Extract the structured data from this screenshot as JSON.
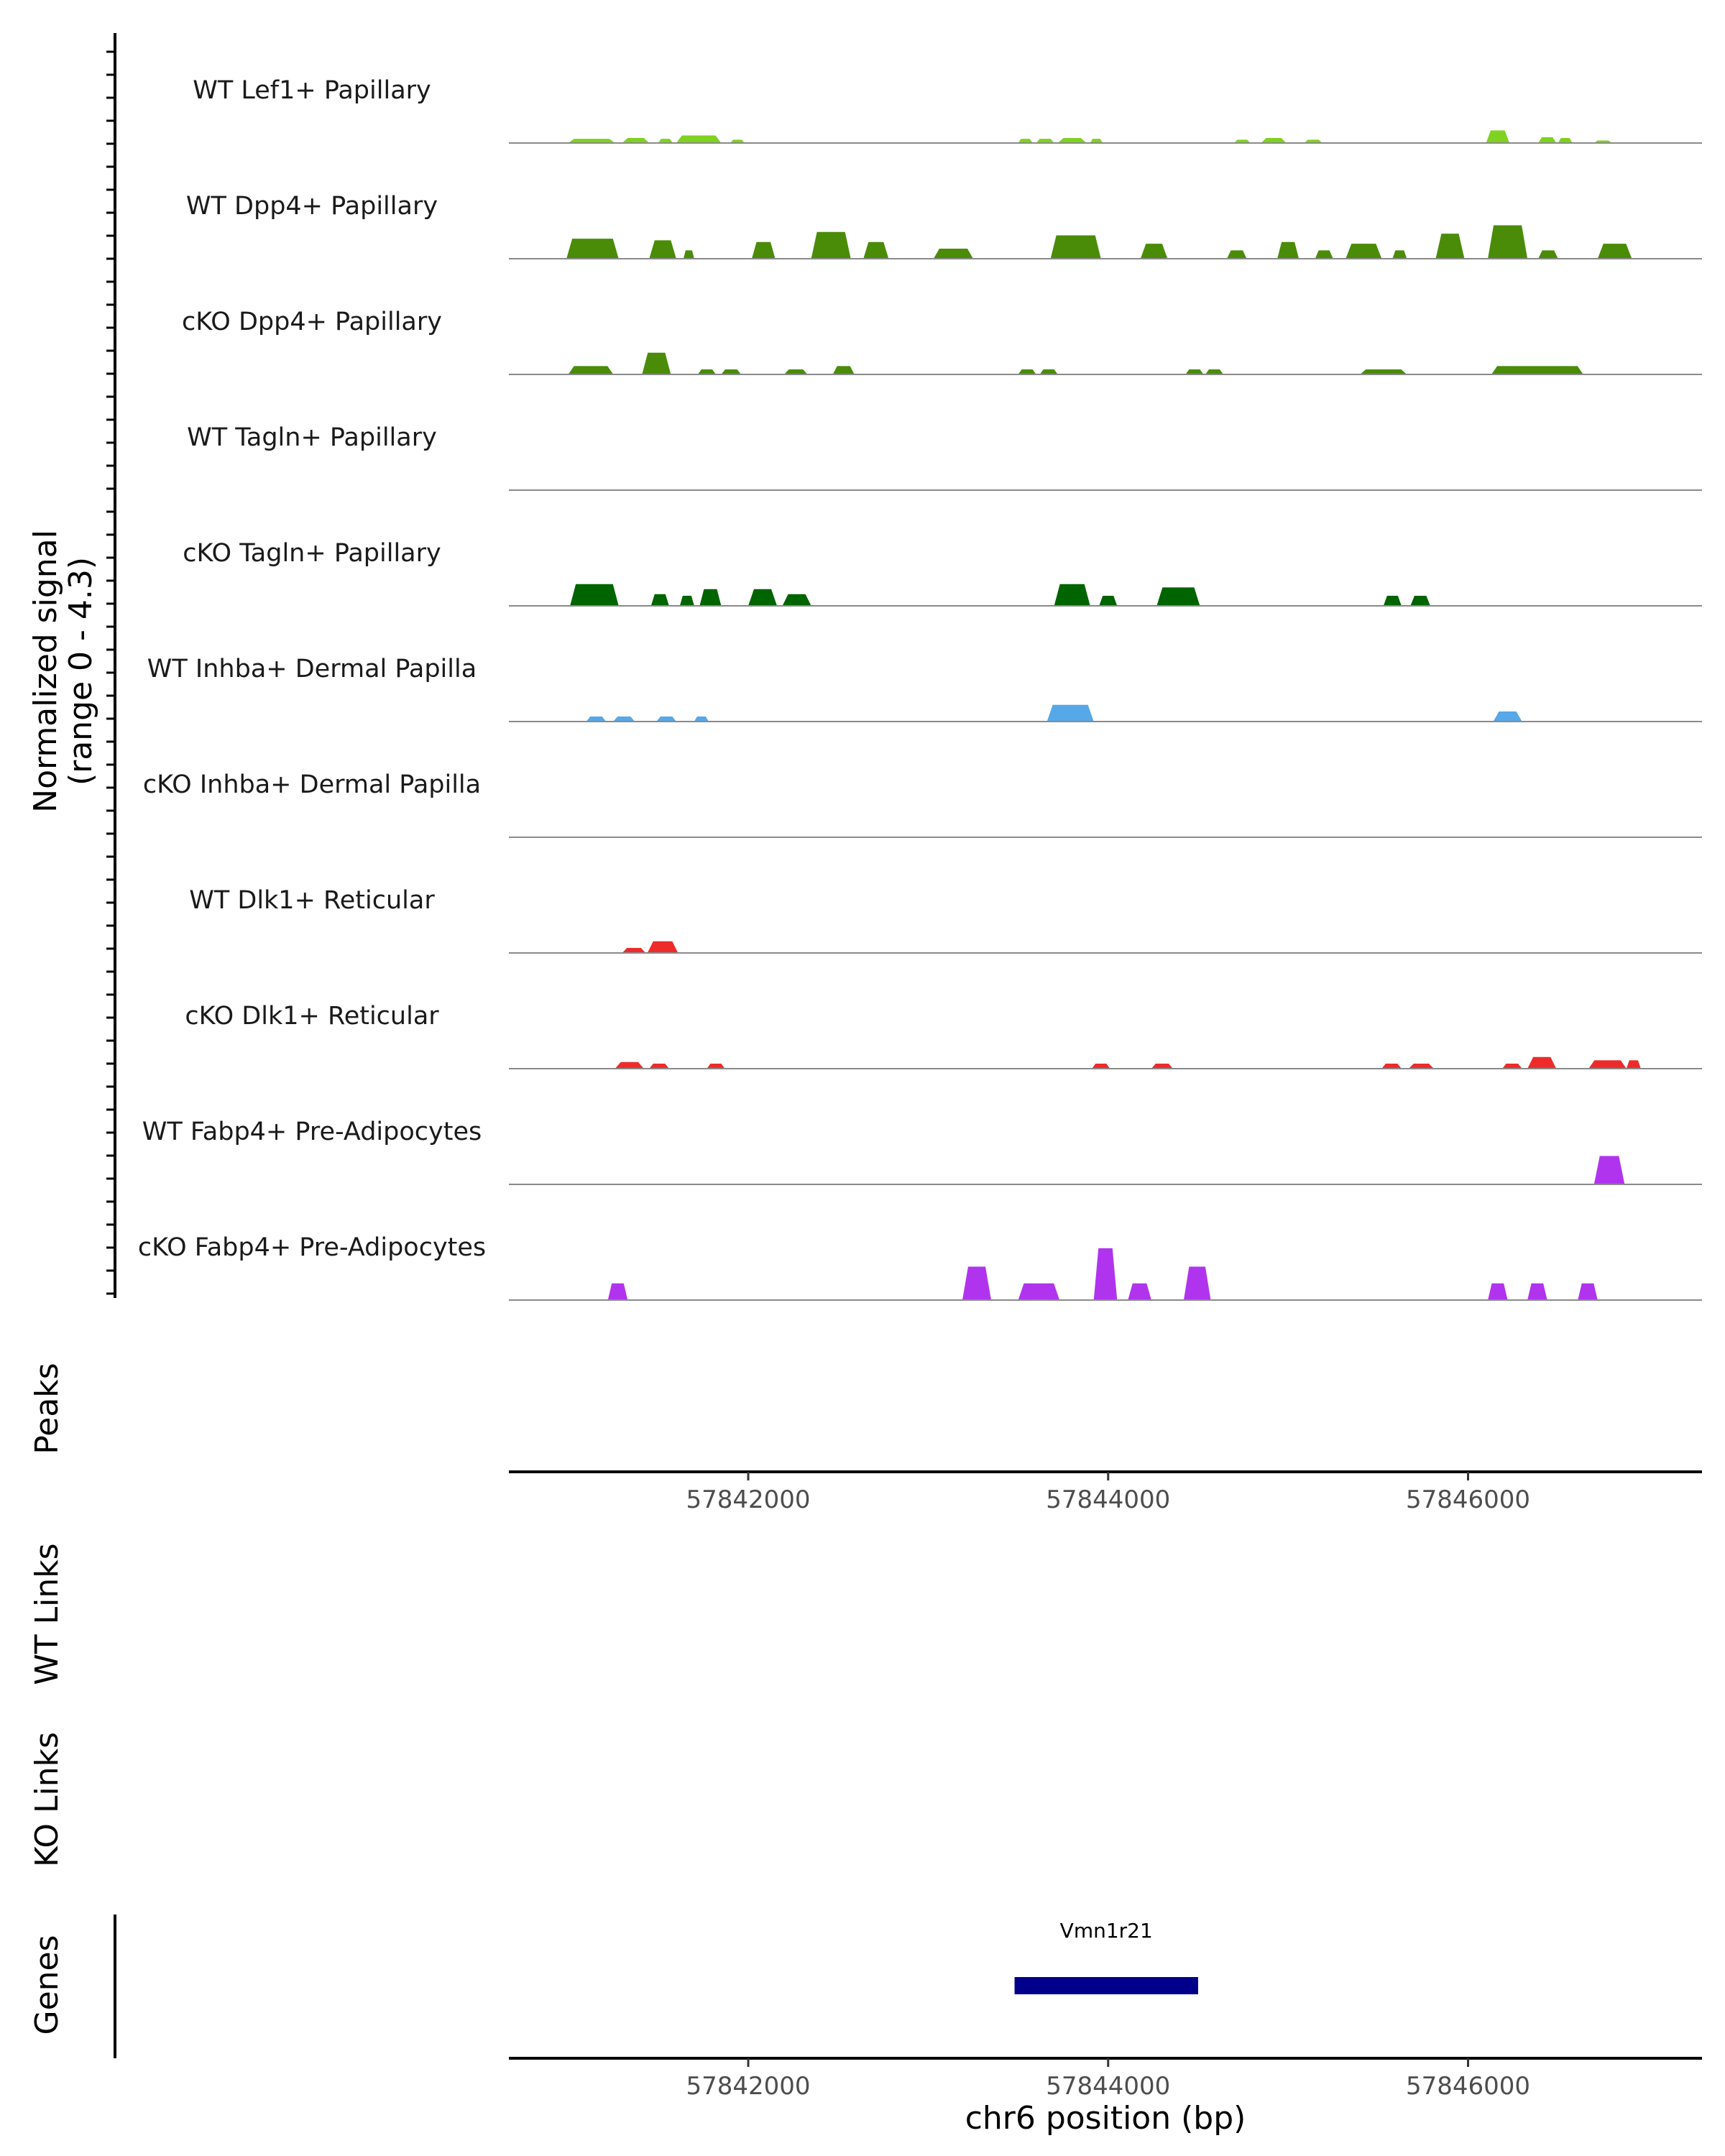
{
  "chart_data": {
    "type": "area",
    "title": "",
    "ylabel_line1": "Normalized signal",
    "ylabel_line2": "(range 0 - 4.3)",
    "ylim": [
      0,
      4.3
    ],
    "xlim": [
      57840670,
      57847300
    ],
    "xlabel": "chr6 position (bp)",
    "x_ticks": [
      57842000,
      57844000,
      57846000
    ],
    "x_tick_labels": [
      "57842000",
      "57844000",
      "57846000"
    ],
    "tracks": [
      {
        "name": "WT Lef1+ Papillary",
        "color": "#7fd21f",
        "peaks": [
          [
            57841000,
            57841260,
            0.25
          ],
          [
            57841300,
            57841450,
            0.3
          ],
          [
            57841500,
            57841580,
            0.25
          ],
          [
            57841600,
            57841850,
            0.45
          ],
          [
            57841900,
            57841980,
            0.2
          ],
          [
            57843500,
            57843580,
            0.25
          ],
          [
            57843600,
            57843700,
            0.25
          ],
          [
            57843720,
            57843880,
            0.3
          ],
          [
            57843900,
            57843970,
            0.25
          ],
          [
            57844700,
            57844790,
            0.2
          ],
          [
            57844850,
            57844990,
            0.3
          ],
          [
            57845090,
            57845190,
            0.2
          ],
          [
            57846100,
            57846230,
            0.75
          ],
          [
            57846390,
            57846490,
            0.35
          ],
          [
            57846500,
            57846580,
            0.3
          ],
          [
            57846700,
            57846800,
            0.15
          ]
        ]
      },
      {
        "name": "WT Dpp4+ Papillary",
        "color": "#4a8c08",
        "peaks": [
          [
            57840990,
            57841280,
            1.2
          ],
          [
            57841450,
            57841600,
            1.1
          ],
          [
            57841640,
            57841700,
            0.5
          ],
          [
            57842020,
            57842150,
            1.0
          ],
          [
            57842350,
            57842570,
            1.6
          ],
          [
            57842640,
            57842780,
            1.0
          ],
          [
            57843030,
            57843250,
            0.6
          ],
          [
            57843680,
            57843960,
            1.4
          ],
          [
            57844180,
            57844330,
            0.9
          ],
          [
            57844660,
            57844770,
            0.5
          ],
          [
            57844940,
            57845060,
            1.0
          ],
          [
            57845150,
            57845250,
            0.5
          ],
          [
            57845320,
            57845520,
            0.9
          ],
          [
            57845580,
            57845660,
            0.5
          ],
          [
            57845820,
            57845980,
            1.5
          ],
          [
            57846110,
            57846330,
            2.0
          ],
          [
            57846390,
            57846500,
            0.5
          ],
          [
            57846720,
            57846910,
            0.9
          ]
        ]
      },
      {
        "name": "cKO Dpp4+ Papillary",
        "color": "#4a8c08",
        "peaks": [
          [
            57841000,
            57841250,
            0.5
          ],
          [
            57841410,
            57841570,
            1.3
          ],
          [
            57841720,
            57841820,
            0.3
          ],
          [
            57841850,
            57841960,
            0.3
          ],
          [
            57842200,
            57842330,
            0.3
          ],
          [
            57842470,
            57842590,
            0.5
          ],
          [
            57843500,
            57843600,
            0.3
          ],
          [
            57843620,
            57843720,
            0.3
          ],
          [
            57844430,
            57844530,
            0.3
          ],
          [
            57844540,
            57844640,
            0.3
          ],
          [
            57845400,
            57845660,
            0.3
          ],
          [
            57846130,
            57846640,
            0.5
          ]
        ]
      },
      {
        "name": "WT Tagln+ Papillary",
        "color": "#006400",
        "peaks": []
      },
      {
        "name": "cKO Tagln+ Papillary",
        "color": "#006400",
        "peaks": [
          [
            57841010,
            57841280,
            1.3
          ],
          [
            57841460,
            57841560,
            0.7
          ],
          [
            57841620,
            57841700,
            0.6
          ],
          [
            57841730,
            57841850,
            1.0
          ],
          [
            57842000,
            57842160,
            1.0
          ],
          [
            57842190,
            57842350,
            0.7
          ],
          [
            57843700,
            57843900,
            1.3
          ],
          [
            57843950,
            57844050,
            0.6
          ],
          [
            57844270,
            57844510,
            1.1
          ],
          [
            57845530,
            57845630,
            0.6
          ],
          [
            57845680,
            57845790,
            0.6
          ]
        ]
      },
      {
        "name": "WT Inhba+ Dermal Papilla",
        "color": "#56a8e8",
        "peaks": [
          [
            57841100,
            57841210,
            0.3
          ],
          [
            57841250,
            57841370,
            0.3
          ],
          [
            57841490,
            57841600,
            0.3
          ],
          [
            57841700,
            57841780,
            0.3
          ],
          [
            57843660,
            57843920,
            1.0
          ],
          [
            57846140,
            57846300,
            0.6
          ]
        ]
      },
      {
        "name": "cKO Inhba+ Dermal Papilla",
        "color": "#56a8e8",
        "peaks": []
      },
      {
        "name": "WT Dlk1+ Reticular",
        "color": "#ee2b2b",
        "peaks": [
          [
            57841300,
            57841430,
            0.3
          ],
          [
            57841440,
            57841610,
            0.7
          ]
        ]
      },
      {
        "name": "cKO Dlk1+ Reticular",
        "color": "#ee2b2b",
        "peaks": [
          [
            57841260,
            57841420,
            0.4
          ],
          [
            57841450,
            57841560,
            0.3
          ],
          [
            57841770,
            57841870,
            0.3
          ],
          [
            57843910,
            57844010,
            0.3
          ],
          [
            57844240,
            57844360,
            0.3
          ],
          [
            57845520,
            57845630,
            0.3
          ],
          [
            57845670,
            57845810,
            0.3
          ],
          [
            57846190,
            57846300,
            0.3
          ],
          [
            57846330,
            57846490,
            0.7
          ],
          [
            57846670,
            57846880,
            0.5
          ],
          [
            57846880,
            57846960,
            0.5
          ]
        ]
      },
      {
        "name": "WT Fabp4+ Pre-Adipocytes",
        "color": "#b034ee",
        "peaks": [
          [
            57846700,
            57846870,
            1.7
          ]
        ]
      },
      {
        "name": "cKO Fabp4+ Pre-Adipocytes",
        "color": "#b034ee",
        "peaks": [
          [
            57841220,
            57841330,
            1.0
          ],
          [
            57843190,
            57843350,
            2.0
          ],
          [
            57843500,
            57843730,
            1.0
          ],
          [
            57843920,
            57844050,
            3.1
          ],
          [
            57844110,
            57844240,
            1.0
          ],
          [
            57844420,
            57844570,
            2.0
          ],
          [
            57846110,
            57846220,
            1.0
          ],
          [
            57846330,
            57846440,
            1.0
          ],
          [
            57846610,
            57846720,
            1.0
          ]
        ]
      }
    ],
    "panels": {
      "peaks_label": "Peaks",
      "wt_links_label": "WT Links",
      "ko_links_label": "KO Links",
      "genes_label": "Genes"
    },
    "genes": [
      {
        "name": "Vmn1r21",
        "start": 57843480,
        "end": 57844500,
        "color": "#00008b"
      }
    ]
  }
}
